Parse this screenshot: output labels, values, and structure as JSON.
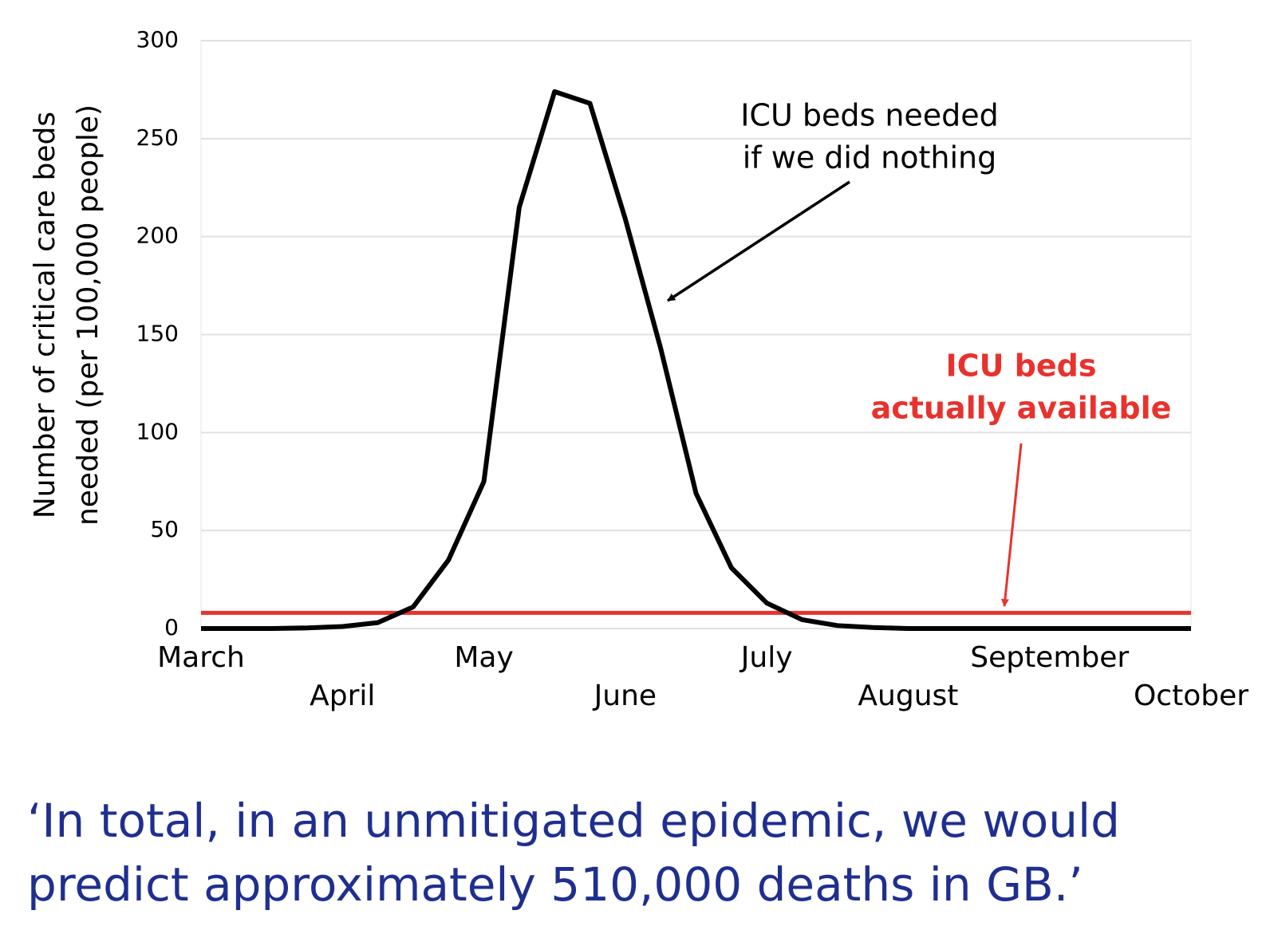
{
  "chart_data": {
    "type": "line",
    "y_label": [
      "Number of critical care beds",
      "needed (per 100,000 people)"
    ],
    "categories": [
      "March",
      null,
      null,
      null,
      "April",
      null,
      null,
      null,
      "May",
      null,
      null,
      null,
      "June",
      null,
      null,
      null,
      "July",
      null,
      null,
      null,
      "August",
      null,
      null,
      null,
      "September",
      null,
      null,
      null,
      "October"
    ],
    "series": [
      {
        "color": "#000000",
        "values": [
          0,
          0,
          0,
          0.3,
          1,
          3,
          11,
          35,
          75,
          215,
          274,
          268,
          209,
          143,
          69,
          31,
          13,
          4.5,
          1.5,
          0.5,
          0,
          0,
          0,
          0,
          0,
          0,
          0,
          0,
          0
        ]
      },
      {
        "color": "#e8322d",
        "values": [
          8,
          8,
          8,
          8,
          8,
          8,
          8,
          8,
          8,
          8,
          8,
          8,
          8,
          8,
          8,
          8,
          8,
          8,
          8,
          8,
          8,
          8,
          8,
          8,
          8,
          8,
          8,
          8,
          8
        ]
      }
    ],
    "ylim": [
      0,
      300
    ],
    "yticks": [
      0,
      50,
      100,
      150,
      200,
      250,
      300
    ],
    "grid": true,
    "annotations": [
      {
        "lines": [
          "ICU beds needed",
          "if we did nothing"
        ],
        "color": "#000000"
      },
      {
        "lines": [
          "ICU beds",
          "actually available"
        ],
        "color": "#e8322d"
      }
    ],
    "caption": [
      "‘In total, in an unmitigated epidemic, we would",
      "predict approximately 510,000 deaths in GB.’"
    ]
  }
}
